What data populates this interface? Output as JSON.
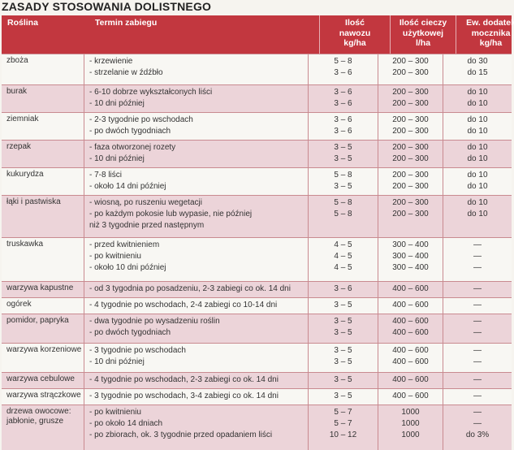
{
  "title": "ZASADY STOSOWANIA DOLISTNEGO",
  "headers": {
    "plant": "Roślina",
    "timing": "Termin zabiegu",
    "fert": [
      "Ilość",
      "nawozu",
      "kg/ha"
    ],
    "liquid": [
      "Ilość cieczy",
      "użytkowej",
      "l/ha"
    ],
    "urea": [
      "Ew. dodatek",
      "mocznika",
      "kg/ha"
    ]
  },
  "rows": [
    {
      "plant": [
        "zboża"
      ],
      "timing": [
        "- krzewienie",
        "- strzelanie w źdźbło"
      ],
      "fert": [
        "5 – 8",
        "3 – 6"
      ],
      "liquid": [
        "200 – 300",
        "200 – 300"
      ],
      "urea": [
        "do 30",
        "do 15"
      ]
    },
    {
      "plant": [
        "burak"
      ],
      "timing": [
        "- 6-10 dobrze wykształconych liści",
        "- 10 dni później"
      ],
      "fert": [
        "3 – 6",
        "3 – 6"
      ],
      "liquid": [
        "200 – 300",
        "200 – 300"
      ],
      "urea": [
        "do 10",
        "do 10"
      ]
    },
    {
      "plant": [
        "ziemniak"
      ],
      "timing": [
        "- 2-3 tygodnie po wschodach",
        "- po dwóch tygodniach"
      ],
      "fert": [
        "3 – 6",
        "3 – 6"
      ],
      "liquid": [
        "200 – 300",
        "200 – 300"
      ],
      "urea": [
        "do 10",
        "do 10"
      ]
    },
    {
      "plant": [
        "rzepak"
      ],
      "timing": [
        "- faza otworzonej rozety",
        "- 10 dni później"
      ],
      "fert": [
        "3 – 5",
        "3 – 5"
      ],
      "liquid": [
        "200 – 300",
        "200 – 300"
      ],
      "urea": [
        "do 10",
        "do 10"
      ]
    },
    {
      "plant": [
        "kukurydza"
      ],
      "timing": [
        "- 7-8 liści",
        "- około 14 dni później"
      ],
      "fert": [
        "5 – 8",
        "3 – 5"
      ],
      "liquid": [
        "200 – 300",
        "200 – 300"
      ],
      "urea": [
        "do 10",
        "do 10"
      ]
    },
    {
      "plant": [
        "łąki i pastwiska"
      ],
      "timing": [
        "- wiosną, po ruszeniu wegetacji",
        "- po każdym pokosie lub wypasie, nie później",
        "  niż 3 tygodnie przed następnym"
      ],
      "fert": [
        "5 – 8",
        "5 – 8",
        ""
      ],
      "liquid": [
        "200 – 300",
        "200 – 300",
        ""
      ],
      "urea": [
        "do 10",
        "do 10",
        ""
      ]
    },
    {
      "plant": [
        "truskawka"
      ],
      "timing": [
        "- przed kwitnieniem",
        "- po kwitnieniu",
        "- około 10 dni później"
      ],
      "fert": [
        "4 – 5",
        "4 – 5",
        "4 – 5"
      ],
      "liquid": [
        "300 – 400",
        "300 – 400",
        "300 – 400"
      ],
      "urea": [
        "—",
        "—",
        "—"
      ]
    },
    {
      "plant": [
        "warzywa kapustne"
      ],
      "timing": [
        "- od 3 tygodnia po posadzeniu, 2-3 zabiegi co ok. 14 dni"
      ],
      "fert": [
        "3 – 6"
      ],
      "liquid": [
        "400 – 600"
      ],
      "urea": [
        "—"
      ]
    },
    {
      "plant": [
        "ogórek"
      ],
      "timing": [
        "- 4 tygodnie po wschodach, 2-4 zabiegi co 10-14 dni"
      ],
      "fert": [
        "3 – 5"
      ],
      "liquid": [
        "400 – 600"
      ],
      "urea": [
        "—"
      ]
    },
    {
      "plant": [
        "pomidor, papryka"
      ],
      "timing": [
        "- dwa tygodnie po wysadzeniu roślin",
        "- po dwóch tygodniach"
      ],
      "fert": [
        "3 – 5",
        "3 – 5"
      ],
      "liquid": [
        "400 – 600",
        "400 – 600"
      ],
      "urea": [
        "—",
        "—"
      ]
    },
    {
      "plant": [
        "warzywa korzeniowe"
      ],
      "timing": [
        "- 3 tygodnie po wschodach",
        "- 10 dni później"
      ],
      "fert": [
        "3 – 5",
        "3 – 5"
      ],
      "liquid": [
        "400 – 600",
        "400 – 600"
      ],
      "urea": [
        "—",
        "—"
      ]
    },
    {
      "plant": [
        "warzywa cebulowe"
      ],
      "timing": [
        "- 4 tygodnie po wschodach, 2-3 zabiegi co ok. 14 dni"
      ],
      "fert": [
        "3 – 5"
      ],
      "liquid": [
        "400 – 600"
      ],
      "urea": [
        "—"
      ]
    },
    {
      "plant": [
        "warzywa strączkowe"
      ],
      "timing": [
        "- 3 tygodnie po wschodach, 3-4 zabiegi co ok. 14 dni"
      ],
      "fert": [
        "3 – 5"
      ],
      "liquid": [
        "400 – 600"
      ],
      "urea": [
        "—"
      ]
    },
    {
      "plant": [
        "drzewa owocowe:",
        "jabłonie, grusze"
      ],
      "timing": [
        "- po kwitnieniu",
        "- po około 14 dniach",
        "- po zbiorach, ok. 3 tygodnie przed opadaniem liści"
      ],
      "fert": [
        "5 – 7",
        "5 – 7",
        "10 – 12"
      ],
      "liquid": [
        "1000",
        "1000",
        "1000"
      ],
      "urea": [
        "—",
        "—",
        "do 3%"
      ]
    }
  ]
}
